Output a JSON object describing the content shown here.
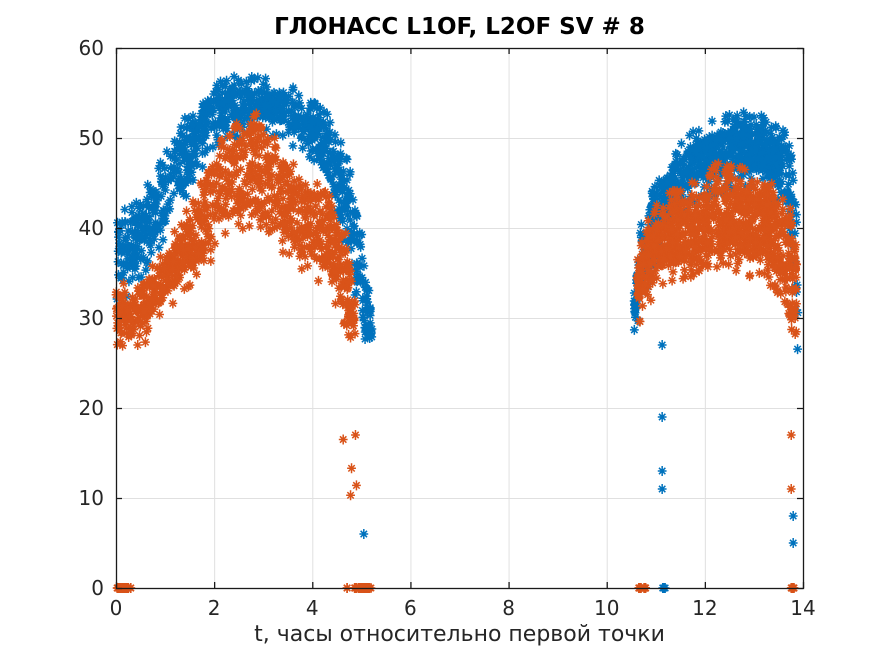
{
  "figure": {
    "background": "#ffffff"
  },
  "chart_data": {
    "type": "scatter",
    "title": "ГЛОНАСС L1OF, L2OF SV # 8",
    "xlabel": "t, часы относительно первой точки",
    "ylabel": "",
    "xlim": [
      0,
      14
    ],
    "ylim": [
      0,
      60
    ],
    "xticks": [
      0,
      2,
      4,
      6,
      8,
      10,
      12,
      14
    ],
    "yticks": [
      0,
      10,
      20,
      30,
      40,
      50,
      60
    ],
    "grid": true,
    "grid_color": "#e0e0e0",
    "axis_color": "#1a1a1a",
    "tick_label_color": "#262626",
    "marker": "asterisk",
    "legend": "none",
    "series": [
      {
        "name": "L1OF",
        "color": "#0072BD",
        "bands": [
          {
            "points": 900,
            "envelope": [
              [
                0.0,
                33.5,
                40.5
              ],
              [
                0.3,
                35,
                41
              ],
              [
                0.6,
                37,
                43.5
              ],
              [
                1.0,
                40.5,
                47
              ],
              [
                1.3,
                44,
                50
              ],
              [
                1.6,
                46.5,
                52.5
              ],
              [
                2.0,
                51,
                55
              ],
              [
                2.5,
                52,
                55.3
              ],
              [
                3.0,
                52.3,
                55.3
              ],
              [
                3.3,
                51.8,
                55
              ],
              [
                3.6,
                51,
                54.2
              ],
              [
                3.9,
                49.5,
                53.5
              ],
              [
                4.2,
                47,
                52
              ],
              [
                4.5,
                43,
                49.5
              ],
              [
                4.75,
                37.5,
                45.5
              ],
              [
                4.95,
                31.5,
                40
              ],
              [
                5.1,
                28,
                34
              ],
              [
                5.22,
                27,
                30.5
              ]
            ]
          },
          {
            "points": 850,
            "envelope": [
              [
                10.55,
                29.3,
                32.5
              ],
              [
                10.7,
                32.5,
                39
              ],
              [
                10.9,
                36.5,
                43
              ],
              [
                11.1,
                39.5,
                45
              ],
              [
                11.4,
                42.5,
                47.5
              ],
              [
                11.7,
                44.5,
                49
              ],
              [
                12.0,
                45.5,
                50
              ],
              [
                12.3,
                46,
                50.6
              ],
              [
                12.6,
                46.5,
                51.3
              ],
              [
                13.0,
                46.5,
                51.3
              ],
              [
                13.25,
                46,
                50.6
              ],
              [
                13.5,
                44.5,
                50
              ],
              [
                13.7,
                41,
                48.8
              ],
              [
                13.82,
                32,
                46
              ],
              [
                13.9,
                27.5,
                40
              ]
            ]
          }
        ],
        "outliers": [
          [
            5.05,
            6
          ],
          [
            11.13,
            27
          ],
          [
            11.13,
            19
          ],
          [
            11.13,
            13
          ],
          [
            11.13,
            11
          ],
          [
            13.8,
            8
          ],
          [
            13.8,
            5
          ]
        ],
        "zero_clusters": [
          {
            "x0": 11.12,
            "x1": 11.2,
            "count": 4
          }
        ]
      },
      {
        "name": "L2OF",
        "color": "#D95319",
        "bands": [
          {
            "points": 950,
            "envelope": [
              [
                0.0,
                28.5,
                33
              ],
              [
                0.25,
                27.7,
                32
              ],
              [
                0.6,
                29.5,
                34
              ],
              [
                1.0,
                32.5,
                36.5
              ],
              [
                1.35,
                34.5,
                39.5
              ],
              [
                1.7,
                36,
                43
              ],
              [
                2.0,
                39,
                47.5
              ],
              [
                2.3,
                40.5,
                49.5
              ],
              [
                2.6,
                41.5,
                50.5
              ],
              [
                2.9,
                41.5,
                52
              ],
              [
                3.1,
                41,
                50.5
              ],
              [
                3.35,
                39.5,
                48
              ],
              [
                3.6,
                38.5,
                46
              ],
              [
                3.9,
                36.5,
                44
              ],
              [
                4.2,
                36,
                43.5
              ],
              [
                4.5,
                33.5,
                41
              ],
              [
                4.7,
                30,
                38
              ],
              [
                4.88,
                27.8,
                33
              ]
            ]
          },
          {
            "points": 950,
            "envelope": [
              [
                10.62,
                31,
                35
              ],
              [
                10.78,
                33,
                38.5
              ],
              [
                11.0,
                35,
                41
              ],
              [
                11.3,
                36,
                42.5
              ],
              [
                11.6,
                36.5,
                43.5
              ],
              [
                11.9,
                36.5,
                44
              ],
              [
                12.2,
                37,
                45.5
              ],
              [
                12.5,
                37.5,
                46.5
              ],
              [
                12.8,
                37,
                45
              ],
              [
                13.1,
                36.5,
                44.2
              ],
              [
                13.4,
                35.5,
                43.5
              ],
              [
                13.6,
                33.5,
                42
              ],
              [
                13.75,
                30,
                40.5
              ],
              [
                13.87,
                27.5,
                36
              ]
            ]
          }
        ],
        "outliers": [
          [
            4.63,
            16.5
          ],
          [
            4.88,
            17
          ],
          [
            4.8,
            13.3
          ],
          [
            4.9,
            11.4
          ],
          [
            4.78,
            10.3
          ],
          [
            13.76,
            17
          ],
          [
            13.76,
            11
          ]
        ],
        "zero_clusters": [
          {
            "x0": 0.02,
            "x1": 0.32,
            "count": 40
          },
          {
            "x0": 4.68,
            "x1": 4.72,
            "count": 2
          },
          {
            "x0": 4.86,
            "x1": 5.2,
            "count": 45
          },
          {
            "x0": 10.63,
            "x1": 10.8,
            "count": 14
          },
          {
            "x0": 13.74,
            "x1": 13.84,
            "count": 8
          }
        ]
      }
    ]
  }
}
